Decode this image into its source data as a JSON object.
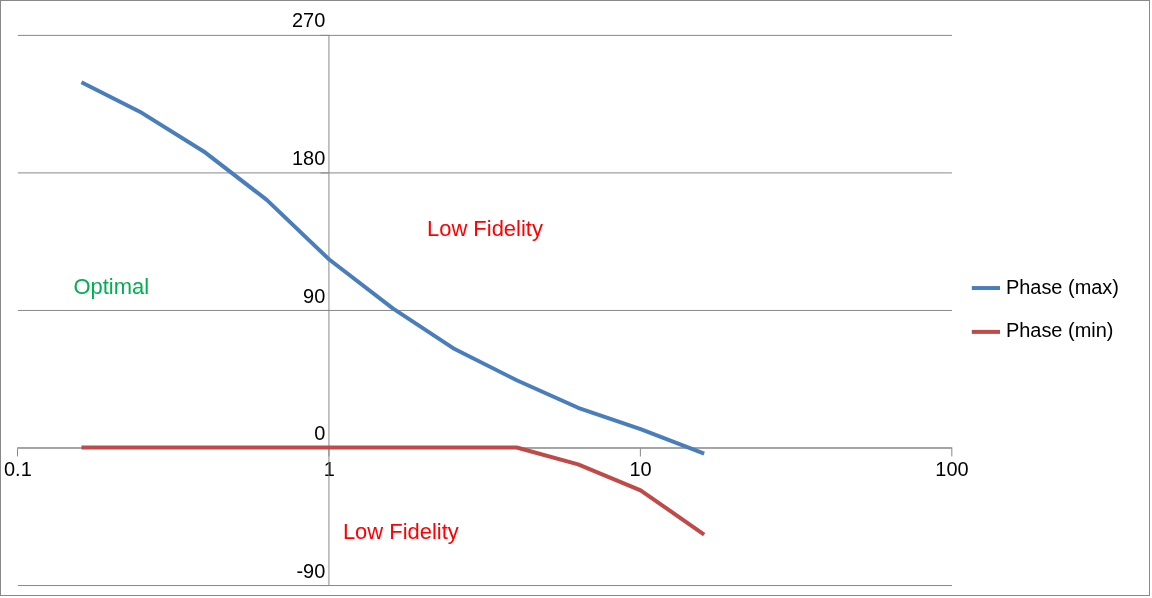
{
  "chart_data": {
    "type": "line",
    "log": "x",
    "x": [
      0.16,
      0.25,
      0.4,
      0.63,
      1,
      1.6,
      2.5,
      4,
      6.3,
      10,
      16
    ],
    "series": [
      {
        "name": "Phase (max)",
        "color": "#4a7ebb",
        "values": [
          239,
          219,
          193,
          162,
          123,
          91,
          65,
          44,
          26,
          12,
          -4
        ]
      },
      {
        "name": "Phase (min)",
        "color": "#be4b48",
        "values": [
          0,
          0,
          0,
          0,
          0,
          0,
          0,
          0,
          -11,
          -28,
          -57
        ]
      }
    ],
    "xlim": [
      0.1,
      100
    ],
    "xticks": [
      0.1,
      1,
      10,
      100
    ],
    "ylim": [
      -90,
      270
    ],
    "yticks": [
      -90,
      0,
      90,
      180,
      270
    ],
    "grid": "y",
    "legend": "right",
    "marker": "none",
    "line_style": "solid",
    "annotations": [
      "Optimal",
      "Low Fidelity",
      "Low Fidelity"
    ]
  }
}
